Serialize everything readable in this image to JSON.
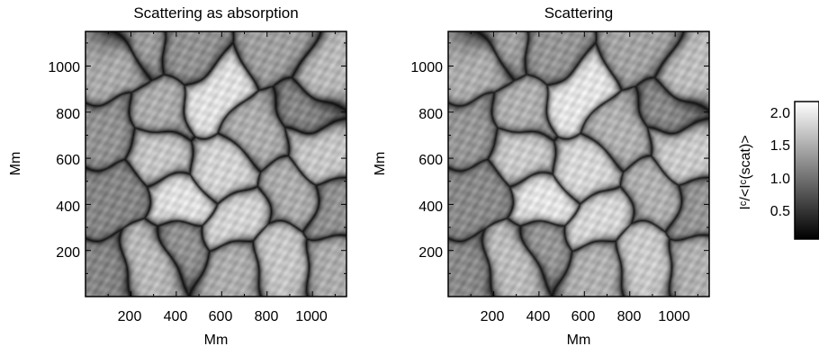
{
  "figure": {
    "panels": [
      {
        "title": "Scattering as absorption",
        "xlabel": "Mm",
        "ylabel": "Mm",
        "xticks": [
          "200",
          "400",
          "600",
          "800",
          "1000"
        ],
        "yticks": [
          "200",
          "400",
          "600",
          "800",
          "1000"
        ]
      },
      {
        "title": "Scattering",
        "xlabel": "Mm",
        "ylabel": "Mm",
        "xticks": [
          "200",
          "400",
          "600",
          "800",
          "1000"
        ],
        "yticks": [
          "200",
          "400",
          "600",
          "800",
          "1000"
        ]
      }
    ],
    "colorbar": {
      "label": "Iᶜ/<Iᶜ(scat)>",
      "ticks": [
        "2.0",
        "1.5",
        "1.0",
        "0.5"
      ],
      "colormap": "grayscale",
      "low_color": "#000000",
      "high_color": "#ffffff"
    }
  },
  "chart_data": {
    "type": "heatmap",
    "colormap": "grayscale",
    "panels": [
      {
        "title": "Scattering as absorption",
        "xlabel": "Mm",
        "ylabel": "Mm",
        "xlim": [
          0,
          1150
        ],
        "ylim": [
          0,
          1150
        ],
        "xticks": [
          200,
          400,
          600,
          800,
          1000
        ],
        "yticks": [
          200,
          400,
          600,
          800,
          1000
        ]
      },
      {
        "title": "Scattering",
        "xlabel": "Mm",
        "ylabel": "Mm",
        "xlim": [
          0,
          1150
        ],
        "ylim": [
          0,
          1150
        ],
        "xticks": [
          200,
          400,
          600,
          800,
          1000
        ],
        "yticks": [
          200,
          400,
          600,
          800,
          1000
        ]
      }
    ],
    "colorbar": {
      "label": "Iᶜ/<Iᶜ(scat)>",
      "range": [
        0.2,
        2.2
      ],
      "ticks": [
        0.5,
        1.0,
        1.5,
        2.0
      ]
    },
    "granules": [
      {
        "x": 150,
        "y": 1000,
        "v": 1.5
      },
      {
        "x": 420,
        "y": 1060,
        "v": 1.3
      },
      {
        "x": 560,
        "y": 900,
        "v": 1.9
      },
      {
        "x": 830,
        "y": 1060,
        "v": 1.4
      },
      {
        "x": 1030,
        "y": 960,
        "v": 1.6
      },
      {
        "x": 130,
        "y": 720,
        "v": 1.3
      },
      {
        "x": 330,
        "y": 800,
        "v": 1.5
      },
      {
        "x": 320,
        "y": 600,
        "v": 1.7
      },
      {
        "x": 600,
        "y": 560,
        "v": 1.8
      },
      {
        "x": 780,
        "y": 700,
        "v": 1.5
      },
      {
        "x": 1040,
        "y": 640,
        "v": 1.7
      },
      {
        "x": 100,
        "y": 430,
        "v": 1.2
      },
      {
        "x": 400,
        "y": 410,
        "v": 1.9
      },
      {
        "x": 650,
        "y": 330,
        "v": 1.8
      },
      {
        "x": 900,
        "y": 420,
        "v": 1.5
      },
      {
        "x": 1080,
        "y": 400,
        "v": 1.3
      },
      {
        "x": 300,
        "y": 150,
        "v": 1.6
      },
      {
        "x": 650,
        "y": 140,
        "v": 1.5
      },
      {
        "x": 900,
        "y": 160,
        "v": 1.7
      },
      {
        "x": 80,
        "y": 120,
        "v": 1.2
      },
      {
        "x": 1100,
        "y": 150,
        "v": 1.5
      },
      {
        "x": 450,
        "y": 230,
        "v": 1.3
      },
      {
        "x": 230,
        "y": 1060,
        "v": 1.4
      },
      {
        "x": 980,
        "y": 820,
        "v": 1.2
      }
    ]
  }
}
